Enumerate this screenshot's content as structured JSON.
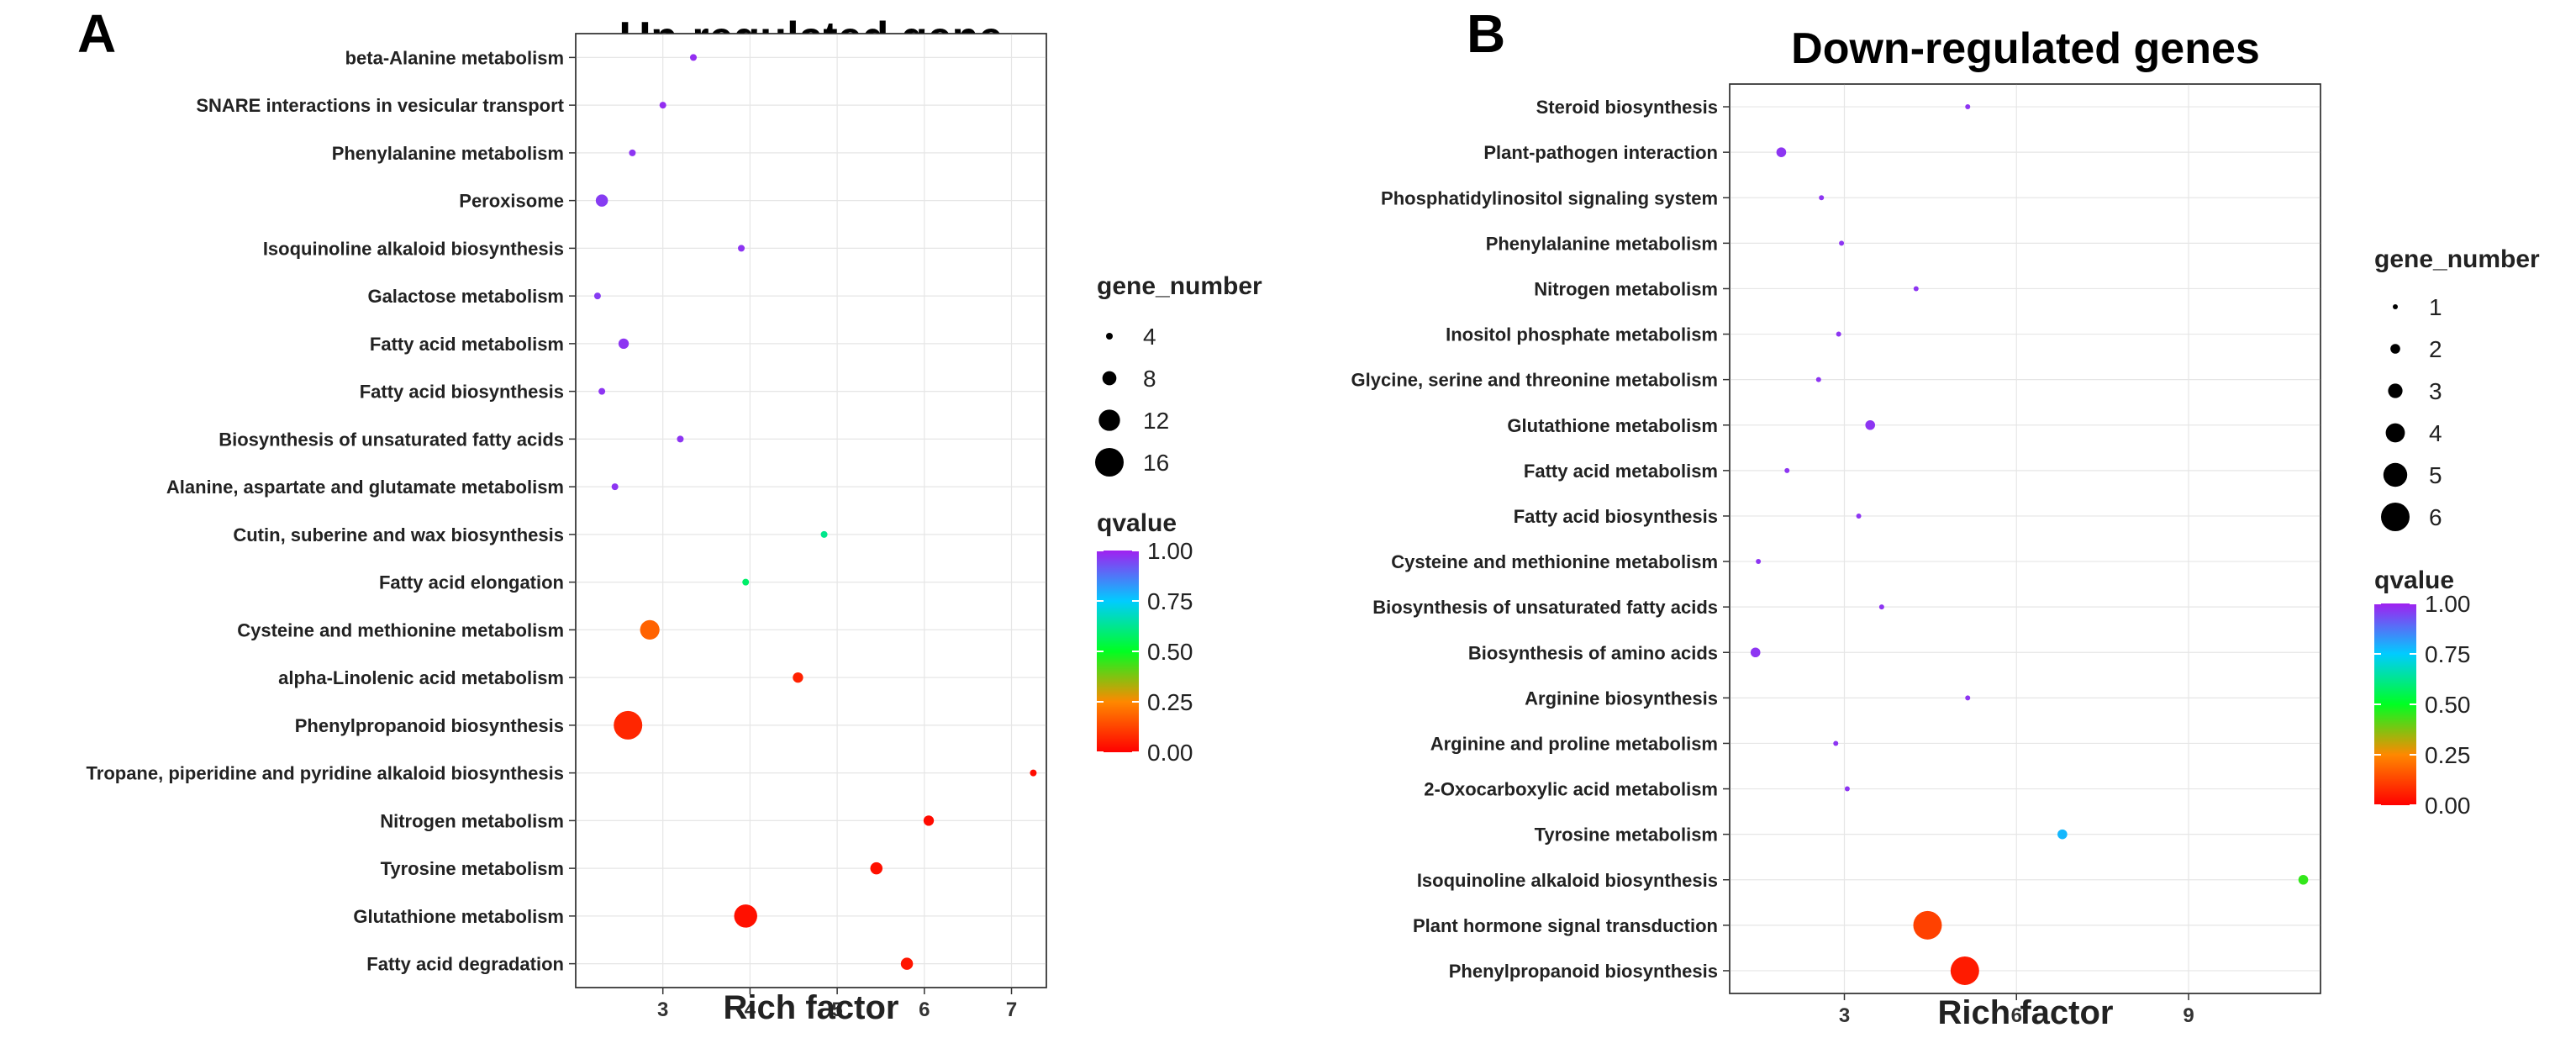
{
  "panel_labels": [
    "A",
    "B"
  ],
  "chart_data": [
    {
      "type": "scatter",
      "title": "Up-regulated gene",
      "xlabel": "Rich factor",
      "ylabel": "",
      "xlim": [
        2.0,
        7.4
      ],
      "x_ticks": [
        3,
        4,
        5,
        6,
        7
      ],
      "categories": [
        "beta-Alanine metabolism",
        "SNARE interactions in vesicular transport",
        "Phenylalanine metabolism",
        "Peroxisome",
        "Isoquinoline alkaloid biosynthesis",
        "Galactose metabolism",
        "Fatty acid metabolism",
        "Fatty acid biosynthesis",
        "Biosynthesis of unsaturated fatty acids",
        "Alanine, aspartate and glutamate metabolism",
        "Cutin, suberine and wax biosynthesis",
        "Fatty acid elongation",
        "Cysteine and methionine metabolism",
        "alpha-Linolenic acid metabolism",
        "Phenylpropanoid biosynthesis",
        "Tropane, piperidine and pyridine alkaloid biosynthesis",
        "Nitrogen metabolism",
        "Tyrosine metabolism",
        "Glutathione metabolism",
        "Fatty acid degradation"
      ],
      "rich_factor": [
        3.35,
        3.0,
        2.65,
        2.3,
        3.9,
        2.25,
        2.55,
        2.3,
        3.2,
        2.45,
        4.85,
        3.95,
        2.85,
        4.55,
        2.6,
        7.25,
        6.05,
        5.45,
        3.95,
        5.8
      ],
      "gene_number": [
        3,
        2,
        3,
        7,
        2,
        3,
        6,
        2,
        3,
        2,
        2,
        3,
        11,
        6,
        18,
        3,
        6,
        7,
        13,
        7
      ],
      "qvalue": [
        0.98,
        0.98,
        0.97,
        0.96,
        0.97,
        0.96,
        0.97,
        0.97,
        0.97,
        0.97,
        0.62,
        0.58,
        0.18,
        0.06,
        0.07,
        0.02,
        0.02,
        0.03,
        0.03,
        0.04
      ],
      "size_legend": {
        "title": "gene_number",
        "values": [
          4,
          8,
          12,
          16
        ]
      },
      "color_legend": {
        "title": "qvalue",
        "ticks": [
          "1.00",
          "0.75",
          "0.50",
          "0.25",
          "0.00"
        ]
      }
    },
    {
      "type": "scatter",
      "title": "Down-regulated genes",
      "xlabel": "Rich factor",
      "ylabel": "",
      "xlim": [
        1.0,
        11.3
      ],
      "x_ticks": [
        3,
        6,
        9
      ],
      "categories": [
        "Steroid biosynthesis",
        "Plant-pathogen interaction",
        "Phosphatidylinositol signaling system",
        "Phenylalanine metabolism",
        "Nitrogen metabolism",
        "Inositol phosphate metabolism",
        "Glycine, serine and threonine metabolism",
        "Glutathione metabolism",
        "Fatty acid metabolism",
        "Fatty acid biosynthesis",
        "Cysteine and methionine metabolism",
        "Biosynthesis of unsaturated fatty acids",
        "Biosynthesis of amino acids",
        "Arginine biosynthesis",
        "Arginine and proline metabolism",
        "2-Oxocarboxylic acid metabolism",
        "Tyrosine metabolism",
        "Isoquinoline alkaloid biosynthesis",
        "Plant hormone signal transduction",
        "Phenylpropanoid biosynthesis"
      ],
      "rich_factor": [
        5.15,
        1.9,
        2.6,
        2.95,
        4.25,
        2.9,
        2.55,
        3.45,
        2.0,
        3.25,
        1.5,
        3.65,
        1.45,
        5.15,
        2.85,
        3.05,
        6.8,
        11.0,
        4.45,
        5.1
      ],
      "gene_number": [
        1,
        2,
        1,
        1,
        1,
        1,
        1,
        2,
        1,
        1,
        1,
        1,
        2,
        1,
        1,
        1,
        2,
        2,
        6,
        6
      ],
      "qvalue": [
        0.97,
        0.97,
        0.97,
        0.97,
        0.97,
        0.97,
        0.97,
        0.97,
        0.97,
        0.97,
        0.97,
        0.97,
        0.97,
        0.97,
        0.97,
        0.97,
        0.78,
        0.45,
        0.12,
        0.05
      ],
      "size_legend": {
        "title": "gene_number",
        "values": [
          1,
          2,
          3,
          4,
          5,
          6
        ]
      },
      "color_legend": {
        "title": "qvalue",
        "ticks": [
          "1.00",
          "0.75",
          "0.50",
          "0.25",
          "0.00"
        ]
      }
    }
  ],
  "colors": {
    "scale": [
      "#ff0000",
      "#ff8800",
      "#00ff22",
      "#00ccff",
      "#a020f0"
    ]
  }
}
